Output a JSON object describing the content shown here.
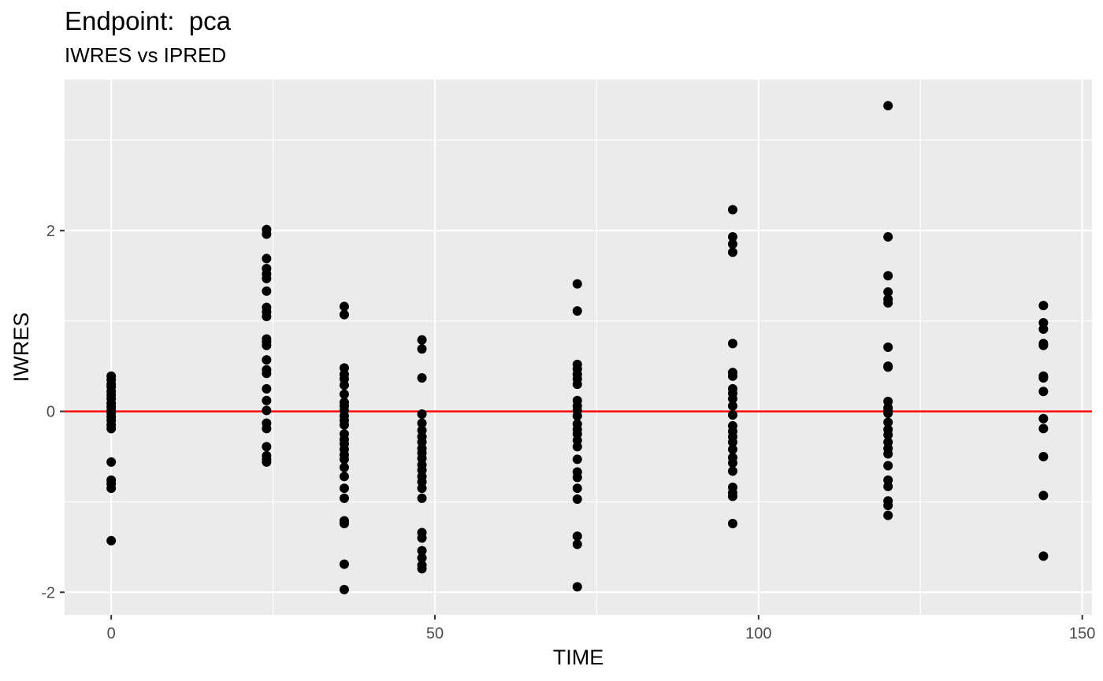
{
  "chart_data": {
    "type": "scatter",
    "title": "Endpoint:  pca",
    "subtitle": "IWRES vs IPRED",
    "xlabel": "TIME",
    "ylabel": "IWRES",
    "xlim": [
      -7.2,
      151.5
    ],
    "ylim": [
      -2.25,
      3.67
    ],
    "xticks": [
      0,
      50,
      100,
      150
    ],
    "yticks": [
      -2,
      0,
      2
    ],
    "grid": true,
    "reference_line": {
      "y": 0,
      "color": "#ff0000"
    },
    "point_color": "#000000",
    "panel_color": "#ebebeb",
    "points": [
      [
        0,
        0.39
      ],
      [
        0,
        0.35
      ],
      [
        0,
        0.3
      ],
      [
        0,
        0.27
      ],
      [
        0,
        0.22
      ],
      [
        0,
        0.18
      ],
      [
        0,
        0.14
      ],
      [
        0,
        0.09
      ],
      [
        0,
        0.05
      ],
      [
        0,
        0.01
      ],
      [
        0,
        -0.02
      ],
      [
        0,
        -0.06
      ],
      [
        0,
        -0.1
      ],
      [
        0,
        -0.15
      ],
      [
        0,
        -0.19
      ],
      [
        0,
        -0.56
      ],
      [
        0,
        -0.76
      ],
      [
        0,
        -0.8
      ],
      [
        0,
        -0.85
      ],
      [
        0,
        -1.43
      ],
      [
        24,
        2.01
      ],
      [
        24,
        1.96
      ],
      [
        24,
        1.69
      ],
      [
        24,
        1.58
      ],
      [
        24,
        1.52
      ],
      [
        24,
        1.47
      ],
      [
        24,
        1.33
      ],
      [
        24,
        1.15
      ],
      [
        24,
        1.1
      ],
      [
        24,
        1.05
      ],
      [
        24,
        0.8
      ],
      [
        24,
        0.77
      ],
      [
        24,
        0.73
      ],
      [
        24,
        0.57
      ],
      [
        24,
        0.46
      ],
      [
        24,
        0.42
      ],
      [
        24,
        0.25
      ],
      [
        24,
        0.12
      ],
      [
        24,
        0.01
      ],
      [
        24,
        -0.13
      ],
      [
        24,
        -0.19
      ],
      [
        24,
        -0.39
      ],
      [
        24,
        -0.49
      ],
      [
        24,
        -0.53
      ],
      [
        24,
        -0.56
      ],
      [
        36,
        1.16
      ],
      [
        36,
        1.07
      ],
      [
        36,
        0.48
      ],
      [
        36,
        0.41
      ],
      [
        36,
        0.36
      ],
      [
        36,
        0.29
      ],
      [
        36,
        0.19
      ],
      [
        36,
        0.1
      ],
      [
        36,
        0.06
      ],
      [
        36,
        0.01
      ],
      [
        36,
        -0.05
      ],
      [
        36,
        -0.1
      ],
      [
        36,
        -0.15
      ],
      [
        36,
        -0.25
      ],
      [
        36,
        -0.31
      ],
      [
        36,
        -0.36
      ],
      [
        36,
        -0.42
      ],
      [
        36,
        -0.48
      ],
      [
        36,
        -0.53
      ],
      [
        36,
        -0.62
      ],
      [
        36,
        -0.72
      ],
      [
        36,
        -0.85
      ],
      [
        36,
        -0.96
      ],
      [
        36,
        -1.21
      ],
      [
        36,
        -1.24
      ],
      [
        36,
        -1.69
      ],
      [
        36,
        -1.97
      ],
      [
        48,
        0.79
      ],
      [
        48,
        0.69
      ],
      [
        48,
        0.37
      ],
      [
        48,
        -0.03
      ],
      [
        48,
        -0.13
      ],
      [
        48,
        -0.21
      ],
      [
        48,
        -0.28
      ],
      [
        48,
        -0.34
      ],
      [
        48,
        -0.41
      ],
      [
        48,
        -0.46
      ],
      [
        48,
        -0.52
      ],
      [
        48,
        -0.59
      ],
      [
        48,
        -0.65
      ],
      [
        48,
        -0.72
      ],
      [
        48,
        -0.78
      ],
      [
        48,
        -0.85
      ],
      [
        48,
        -0.96
      ],
      [
        48,
        -1.34
      ],
      [
        48,
        -1.4
      ],
      [
        48,
        -1.54
      ],
      [
        48,
        -1.62
      ],
      [
        48,
        -1.7
      ],
      [
        48,
        -1.74
      ],
      [
        72,
        1.41
      ],
      [
        72,
        1.11
      ],
      [
        72,
        0.52
      ],
      [
        72,
        0.47
      ],
      [
        72,
        0.41
      ],
      [
        72,
        0.36
      ],
      [
        72,
        0.3
      ],
      [
        72,
        0.12
      ],
      [
        72,
        0.06
      ],
      [
        72,
        0.01
      ],
      [
        72,
        -0.05
      ],
      [
        72,
        -0.14
      ],
      [
        72,
        -0.2
      ],
      [
        72,
        -0.25
      ],
      [
        72,
        -0.32
      ],
      [
        72,
        -0.39
      ],
      [
        72,
        -0.53
      ],
      [
        72,
        -0.67
      ],
      [
        72,
        -0.73
      ],
      [
        72,
        -0.85
      ],
      [
        72,
        -0.97
      ],
      [
        72,
        -1.38
      ],
      [
        72,
        -1.47
      ],
      [
        72,
        -1.94
      ],
      [
        96,
        2.23
      ],
      [
        96,
        1.93
      ],
      [
        96,
        1.85
      ],
      [
        96,
        1.76
      ],
      [
        96,
        0.75
      ],
      [
        96,
        0.43
      ],
      [
        96,
        0.39
      ],
      [
        96,
        0.25
      ],
      [
        96,
        0.2
      ],
      [
        96,
        0.14
      ],
      [
        96,
        0.06
      ],
      [
        96,
        -0.04
      ],
      [
        96,
        -0.16
      ],
      [
        96,
        -0.22
      ],
      [
        96,
        -0.28
      ],
      [
        96,
        -0.34
      ],
      [
        96,
        -0.42
      ],
      [
        96,
        -0.51
      ],
      [
        96,
        -0.57
      ],
      [
        96,
        -0.66
      ],
      [
        96,
        -0.84
      ],
      [
        96,
        -0.9
      ],
      [
        96,
        -0.94
      ],
      [
        96,
        -1.24
      ],
      [
        120,
        3.38
      ],
      [
        120,
        1.93
      ],
      [
        120,
        1.5
      ],
      [
        120,
        1.32
      ],
      [
        120,
        1.24
      ],
      [
        120,
        1.2
      ],
      [
        120,
        0.71
      ],
      [
        120,
        0.5
      ],
      [
        120,
        0.49
      ],
      [
        120,
        0.11
      ],
      [
        120,
        0.04
      ],
      [
        120,
        0.01
      ],
      [
        120,
        -0.02
      ],
      [
        120,
        -0.12
      ],
      [
        120,
        -0.2
      ],
      [
        120,
        -0.26
      ],
      [
        120,
        -0.34
      ],
      [
        120,
        -0.41
      ],
      [
        120,
        -0.47
      ],
      [
        120,
        -0.6
      ],
      [
        120,
        -0.76
      ],
      [
        120,
        -0.83
      ],
      [
        120,
        -0.99
      ],
      [
        120,
        -1.04
      ],
      [
        120,
        -1.15
      ],
      [
        144,
        1.17
      ],
      [
        144,
        0.98
      ],
      [
        144,
        0.91
      ],
      [
        144,
        0.75
      ],
      [
        144,
        0.73
      ],
      [
        144,
        0.39
      ],
      [
        144,
        0.37
      ],
      [
        144,
        0.22
      ],
      [
        144,
        -0.08
      ],
      [
        144,
        -0.19
      ],
      [
        144,
        -0.5
      ],
      [
        144,
        -0.93
      ],
      [
        144,
        -1.6
      ]
    ]
  }
}
